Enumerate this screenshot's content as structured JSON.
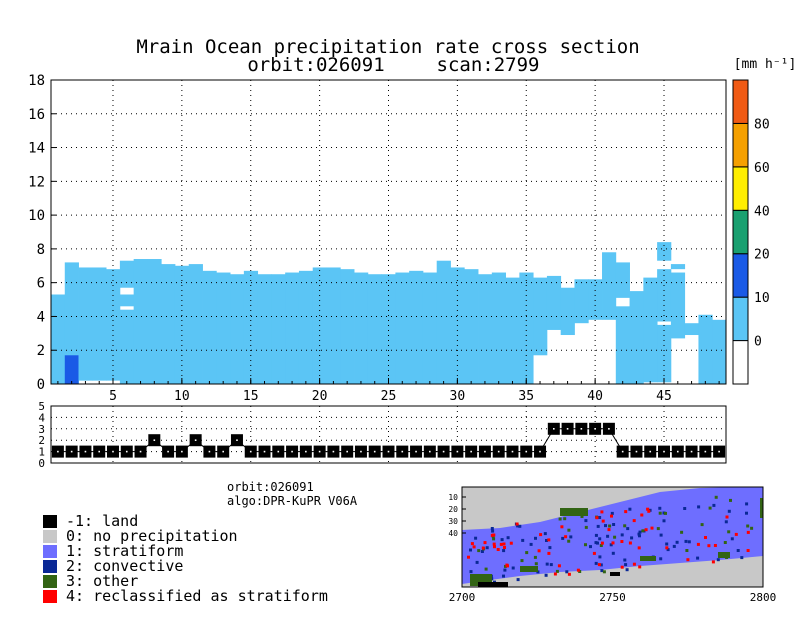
{
  "chart_data": [
    {
      "type": "heatmap",
      "title": "Mrain Ocean precipitation rate cross section",
      "subtitle": [
        "orbit:026091",
        "scan:2799"
      ],
      "xlabel": "",
      "ylabel": "",
      "xlim": [
        1,
        49
      ],
      "ylim": [
        0,
        18
      ],
      "x_ticks": [
        5,
        10,
        15,
        20,
        25,
        30,
        35,
        40,
        45
      ],
      "y_ticks": [
        0,
        2,
        4,
        6,
        8,
        10,
        12,
        14,
        16,
        18
      ],
      "grid": true,
      "colorbar": {
        "unit": "[mm h⁻¹]",
        "boundaries": [
          0,
          10,
          20,
          40,
          60,
          80
        ],
        "tick_labels": [
          "0",
          "10",
          "20",
          "40",
          "60",
          "80"
        ],
        "colors": [
          "#ffffff",
          "#5bc5f5",
          "#1a5ae6",
          "#1aa070",
          "#ffee00",
          "#f5a000",
          "#f05a14"
        ]
      },
      "columns": [
        {
          "bottom": 0,
          "top": 5.3,
          "gaps": []
        },
        {
          "bottom": 0,
          "top": 7.2,
          "gaps": [],
          "highlight": {
            "bottom": 0,
            "top": 1.7,
            "color": "#1a5ae6"
          }
        },
        {
          "bottom": 0.2,
          "top": 6.9,
          "gaps": []
        },
        {
          "bottom": 0.2,
          "top": 6.9,
          "gaps": []
        },
        {
          "bottom": 0.2,
          "top": 6.8,
          "gaps": []
        },
        {
          "bottom": 0,
          "top": 7.3,
          "gaps": [
            [
              4.4,
              4.6
            ],
            [
              5.3,
              5.7
            ]
          ]
        },
        {
          "bottom": 0,
          "top": 7.4,
          "gaps": []
        },
        {
          "bottom": 0,
          "top": 7.4,
          "gaps": []
        },
        {
          "bottom": 0,
          "top": 7.1,
          "gaps": []
        },
        {
          "bottom": 0,
          "top": 7.0,
          "gaps": []
        },
        {
          "bottom": 0,
          "top": 7.1,
          "gaps": []
        },
        {
          "bottom": 0,
          "top": 6.7,
          "gaps": []
        },
        {
          "bottom": 0,
          "top": 6.6,
          "gaps": []
        },
        {
          "bottom": 0,
          "top": 6.5,
          "gaps": []
        },
        {
          "bottom": 0,
          "top": 6.7,
          "gaps": []
        },
        {
          "bottom": 0,
          "top": 6.5,
          "gaps": []
        },
        {
          "bottom": 0,
          "top": 6.5,
          "gaps": []
        },
        {
          "bottom": 0,
          "top": 6.6,
          "gaps": []
        },
        {
          "bottom": 0,
          "top": 6.7,
          "gaps": []
        },
        {
          "bottom": 0,
          "top": 6.9,
          "gaps": []
        },
        {
          "bottom": 0,
          "top": 6.9,
          "gaps": []
        },
        {
          "bottom": 0,
          "top": 6.8,
          "gaps": []
        },
        {
          "bottom": 0,
          "top": 6.6,
          "gaps": []
        },
        {
          "bottom": 0,
          "top": 6.5,
          "gaps": []
        },
        {
          "bottom": 0,
          "top": 6.5,
          "gaps": []
        },
        {
          "bottom": 0,
          "top": 6.6,
          "gaps": []
        },
        {
          "bottom": 0,
          "top": 6.7,
          "gaps": []
        },
        {
          "bottom": 0,
          "top": 6.6,
          "gaps": []
        },
        {
          "bottom": 0,
          "top": 7.3,
          "gaps": []
        },
        {
          "bottom": 0,
          "top": 6.9,
          "gaps": []
        },
        {
          "bottom": 0,
          "top": 6.8,
          "gaps": []
        },
        {
          "bottom": 0,
          "top": 6.5,
          "gaps": []
        },
        {
          "bottom": 0,
          "top": 6.6,
          "gaps": []
        },
        {
          "bottom": 0,
          "top": 6.3,
          "gaps": []
        },
        {
          "bottom": 0,
          "top": 6.6,
          "gaps": []
        },
        {
          "bottom": 1.7,
          "top": 6.3,
          "gaps": []
        },
        {
          "bottom": 3.2,
          "top": 6.4,
          "gaps": []
        },
        {
          "bottom": 2.9,
          "top": 5.7,
          "gaps": []
        },
        {
          "bottom": 3.6,
          "top": 6.2,
          "gaps": []
        },
        {
          "bottom": 3.8,
          "top": 6.2,
          "gaps": []
        },
        {
          "bottom": 3.8,
          "top": 7.8,
          "gaps": []
        },
        {
          "bottom": 0,
          "top": 7.2,
          "gaps": [
            [
              4.6,
              5.1
            ]
          ]
        },
        {
          "bottom": 0,
          "top": 5.5,
          "gaps": []
        },
        {
          "bottom": 0.1,
          "top": 6.3,
          "gaps": []
        },
        {
          "bottom": 0.1,
          "top": 8.4,
          "gaps": [
            [
              3.5,
              3.7
            ],
            [
              6.8,
              7.3
            ]
          ]
        },
        {
          "bottom": 2.7,
          "top": 7.1,
          "gaps": [
            [
              6.6,
              6.8
            ]
          ]
        },
        {
          "bottom": 2.9,
          "top": 3.6,
          "gaps": []
        },
        {
          "bottom": 0,
          "top": 4.1,
          "gaps": []
        },
        {
          "bottom": 0,
          "top": 3.8,
          "gaps": []
        }
      ]
    },
    {
      "type": "line",
      "title": "",
      "xlim": [
        1,
        49
      ],
      "ylim": [
        0,
        5
      ],
      "y_ticks": [
        0,
        1,
        2,
        3,
        4,
        5
      ],
      "grid": true,
      "x": [
        1,
        2,
        3,
        4,
        5,
        6,
        7,
        8,
        9,
        10,
        11,
        12,
        13,
        14,
        15,
        16,
        17,
        18,
        19,
        20,
        21,
        22,
        23,
        24,
        25,
        26,
        27,
        28,
        29,
        30,
        31,
        32,
        33,
        34,
        35,
        36,
        37,
        38,
        39,
        40,
        41,
        42,
        43,
        44,
        45,
        46,
        47,
        48,
        49
      ],
      "values": [
        1,
        1,
        1,
        1,
        1,
        1,
        1,
        2,
        1,
        1,
        2,
        1,
        1,
        2,
        1,
        1,
        1,
        1,
        1,
        1,
        1,
        1,
        1,
        1,
        1,
        1,
        1,
        1,
        1,
        1,
        1,
        1,
        1,
        1,
        1,
        1,
        3,
        3,
        3,
        3,
        3,
        1,
        1,
        1,
        1,
        1,
        1,
        1,
        1
      ]
    },
    {
      "type": "heatmap",
      "title": "",
      "xlim": [
        2700,
        2800
      ],
      "x_ticks": [
        2700,
        2750,
        2800
      ],
      "y_ticks": [
        10,
        20,
        30,
        40
      ]
    }
  ],
  "info": {
    "orbit": "orbit:026091",
    "algo": "algo:DPR-KuPR V06A"
  },
  "legend": [
    {
      "label": "-1: land",
      "color": "#000000"
    },
    {
      "label": "0: no precipitation",
      "color": "#c8c8c8"
    },
    {
      "label": "1: stratiform",
      "color": "#6e6eff"
    },
    {
      "label": "2: convective",
      "color": "#0a2896"
    },
    {
      "label": "3: other",
      "color": "#326414"
    },
    {
      "label": "4: reclassified as stratiform",
      "color": "#ff0000"
    }
  ]
}
